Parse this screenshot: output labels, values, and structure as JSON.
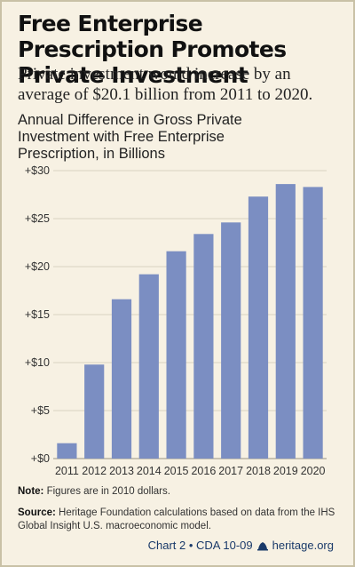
{
  "title": "Free Enterprise Prescription Promotes Private Investment",
  "subtitle": "Private investment would increase by an average of $20.1 billion from 2011 to 2020.",
  "note_label": "Note:",
  "note_text": "Figures are in 2010 dollars.",
  "source_label": "Source:",
  "source_text": "Heritage Foundation calculations based on data from the IHS Global Insight U.S. macroeconomic model.",
  "footer_chart": "Chart 2 • CDA 10-09",
  "footer_site": "heritage.org",
  "colors": {
    "bar": "#7b8ec2",
    "background": "#f7f1e3",
    "grid": "#d9d3c2"
  },
  "chart_data": {
    "type": "bar",
    "title": "Annual Difference in Gross Private Investment with Free Enterprise Prescription, in Billions",
    "categories": [
      "2011",
      "2012",
      "2013",
      "2014",
      "2015",
      "2016",
      "2017",
      "2018",
      "2019",
      "2020"
    ],
    "values": [
      1.6,
      9.8,
      16.6,
      19.2,
      21.6,
      23.4,
      24.6,
      27.3,
      28.6,
      28.3
    ],
    "ylim": [
      0,
      30
    ],
    "yticks": [
      0,
      5,
      10,
      15,
      20,
      25,
      30
    ],
    "ytick_labels": [
      "+$0",
      "+$5",
      "+$10",
      "+$15",
      "+$20",
      "+$25",
      "+$30"
    ],
    "grid": true
  }
}
